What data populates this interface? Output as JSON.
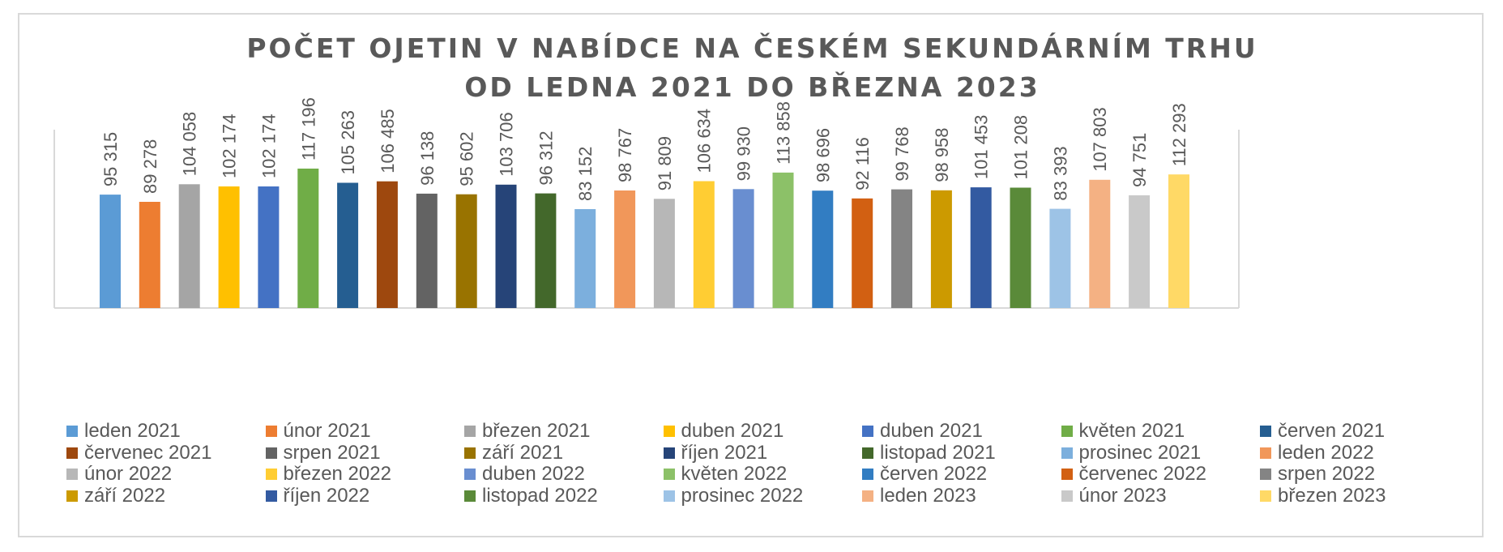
{
  "chart_data": {
    "type": "bar",
    "title": [
      "POČET OJETIN V NABÍDCE NA ČESKÉM SEKUNDÁRNÍM TRHU",
      "OD LEDNA 2021 DO BŘEZNA 2023"
    ],
    "xlabel": "",
    "ylabel": "",
    "ylim": [
      0,
      117196
    ],
    "grid": false,
    "legend_position": "bottom",
    "series": [
      {
        "name": "leden 2021",
        "value": 95315,
        "label": "95 315",
        "color": "#5B9BD5"
      },
      {
        "name": "únor 2021",
        "value": 89278,
        "label": "89 278",
        "color": "#ED7D31"
      },
      {
        "name": "březen 2021",
        "value": 104058,
        "label": "104 058",
        "color": "#A5A5A5"
      },
      {
        "name": "duben 2021",
        "value": 102174,
        "label": "102 174",
        "color": "#FFC000"
      },
      {
        "name": "duben 2021",
        "value": 102174,
        "label": "102 174",
        "color": "#4472C4"
      },
      {
        "name": "květen 2021",
        "value": 117196,
        "label": "117 196",
        "color": "#70AD47"
      },
      {
        "name": "červen 2021",
        "value": 105263,
        "label": "105 263",
        "color": "#255E91"
      },
      {
        "name": "červenec 2021",
        "value": 106485,
        "label": "106 485",
        "color": "#9E480E"
      },
      {
        "name": "srpen 2021",
        "value": 96138,
        "label": "96 138",
        "color": "#636363"
      },
      {
        "name": "září 2021",
        "value": 95602,
        "label": "95 602",
        "color": "#997300"
      },
      {
        "name": "říjen 2021",
        "value": 103706,
        "label": "103 706",
        "color": "#264478"
      },
      {
        "name": "listopad 2021",
        "value": 96312,
        "label": "96 312",
        "color": "#43682B"
      },
      {
        "name": "prosinec 2021",
        "value": 83152,
        "label": "83 152",
        "color": "#7CAFDD"
      },
      {
        "name": "leden 2022",
        "value": 98767,
        "label": "98 767",
        "color": "#F1975A"
      },
      {
        "name": "únor 2022",
        "value": 91809,
        "label": "91 809",
        "color": "#B7B7B7"
      },
      {
        "name": "březen 2022",
        "value": 106634,
        "label": "106 634",
        "color": "#FFCD33"
      },
      {
        "name": "duben 2022",
        "value": 99930,
        "label": "99 930",
        "color": "#698ED0"
      },
      {
        "name": "květen 2022",
        "value": 113858,
        "label": "113 858",
        "color": "#8CC168"
      },
      {
        "name": "červen 2022",
        "value": 98696,
        "label": "98 696",
        "color": "#327DC2"
      },
      {
        "name": "červenec 2022",
        "value": 92116,
        "label": "92 116",
        "color": "#D26012"
      },
      {
        "name": "srpen 2022",
        "value": 99768,
        "label": "99 768",
        "color": "#848484"
      },
      {
        "name": "září 2022",
        "value": 98958,
        "label": "98 958",
        "color": "#CC9A00"
      },
      {
        "name": "říjen 2022",
        "value": 101453,
        "label": "101 453",
        "color": "#335AA1"
      },
      {
        "name": "listopad 2022",
        "value": 101208,
        "label": "101 208",
        "color": "#5A8A39"
      },
      {
        "name": "prosinec 2022",
        "value": 83393,
        "label": "83 393",
        "color": "#9DC3E6"
      },
      {
        "name": "leden 2023",
        "value": 107803,
        "label": "107 803",
        "color": "#F4B183"
      },
      {
        "name": "únor 2023",
        "value": 94751,
        "label": "94 751",
        "color": "#C9C9C9"
      },
      {
        "name": "březen 2023",
        "value": 112293,
        "label": "112 293",
        "color": "#FFD966"
      }
    ]
  }
}
